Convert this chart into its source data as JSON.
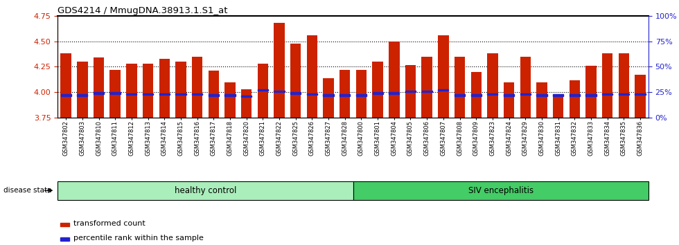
{
  "title": "GDS4214 / MmugDNA.38913.1.S1_at",
  "samples": [
    "GSM347802",
    "GSM347803",
    "GSM347810",
    "GSM347811",
    "GSM347812",
    "GSM347813",
    "GSM347814",
    "GSM347815",
    "GSM347816",
    "GSM347817",
    "GSM347818",
    "GSM347820",
    "GSM347821",
    "GSM347822",
    "GSM347825",
    "GSM347826",
    "GSM347827",
    "GSM347828",
    "GSM347800",
    "GSM347801",
    "GSM347804",
    "GSM347805",
    "GSM347806",
    "GSM347807",
    "GSM347808",
    "GSM347809",
    "GSM347823",
    "GSM347824",
    "GSM347829",
    "GSM347830",
    "GSM347831",
    "GSM347832",
    "GSM347833",
    "GSM347834",
    "GSM347835",
    "GSM347836"
  ],
  "transformed_counts": [
    4.38,
    4.3,
    4.34,
    4.22,
    4.28,
    4.28,
    4.33,
    4.3,
    4.35,
    4.21,
    4.1,
    4.03,
    4.28,
    4.68,
    4.48,
    4.56,
    4.14,
    4.22,
    4.22,
    4.3,
    4.5,
    4.27,
    4.35,
    4.56,
    4.35,
    4.2,
    4.38,
    4.1,
    4.35,
    4.1,
    3.96,
    4.12,
    4.26,
    4.38,
    4.38,
    4.17
  ],
  "percentile_ranks": [
    22,
    22,
    24,
    24,
    23,
    23,
    23,
    23,
    23,
    22,
    22,
    21,
    27,
    26,
    24,
    23,
    22,
    22,
    22,
    24,
    24,
    26,
    26,
    27,
    22,
    22,
    23,
    22,
    23,
    22,
    22,
    22,
    22,
    23,
    23,
    23
  ],
  "group_labels": [
    "healthy control",
    "SIV encephalitis"
  ],
  "group_ranges": [
    [
      0,
      18
    ],
    [
      18,
      36
    ]
  ],
  "group_colors": [
    "#AAEEBB",
    "#44CC66"
  ],
  "bar_color": "#CC2200",
  "blue_marker_color": "#2222CC",
  "ylim": [
    3.75,
    4.75
  ],
  "y2lim": [
    0,
    100
  ],
  "y_ticks": [
    3.75,
    4.0,
    4.25,
    4.5,
    4.75
  ],
  "y2_ticks": [
    0,
    25,
    50,
    75,
    100
  ],
  "y2_tick_labels": [
    "0%",
    "25%",
    "50%",
    "75%",
    "100%"
  ],
  "dotted_lines": [
    4.0,
    4.25,
    4.5
  ],
  "background_color": "#FFFFFF",
  "tick_color_left": "#CC2200",
  "tick_color_right": "#2222CC",
  "xticklabel_bg": "#DDDDDD"
}
